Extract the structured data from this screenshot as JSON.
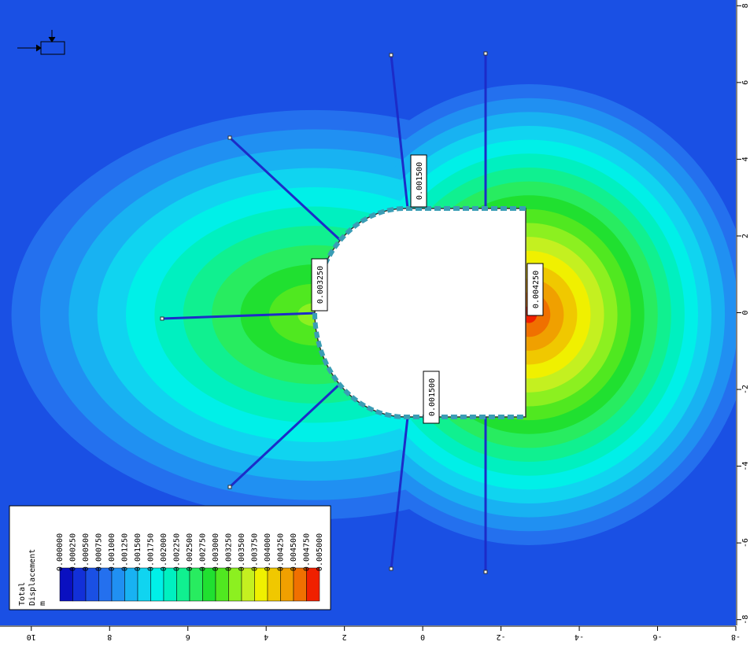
{
  "chart_data": {
    "type": "contour",
    "legend_title_lines": [
      "Total",
      "Displacement"
    ],
    "legend_unit": "m",
    "levels": [
      0,
      0.00025,
      0.0005,
      0.00075,
      0.001,
      0.00125,
      0.0015,
      0.00175,
      0.002,
      0.00225,
      0.0025,
      0.00275,
      0.003,
      0.00325,
      0.0035,
      0.00375,
      0.004,
      0.00425,
      0.0045,
      0.00475,
      0.005
    ],
    "level_labels": [
      "0.000000",
      "0.000250",
      "0.000500",
      "0.000750",
      "0.001000",
      "0.001250",
      "0.001500",
      "0.001750",
      "0.002000",
      "0.002250",
      "0.002500",
      "0.002750",
      "0.003000",
      "0.003250",
      "0.003500",
      "0.003750",
      "0.004000",
      "0.004250",
      "0.004500",
      "0.004750",
      "0.005000"
    ],
    "colors": [
      "#0a10c0",
      "#1230d8",
      "#1a50e4",
      "#2470ee",
      "#2090f2",
      "#18b2f2",
      "#10d4f0",
      "#00f0e8",
      "#00f0c0",
      "#10f090",
      "#28ec60",
      "#20e030",
      "#50e820",
      "#8cf020",
      "#c4f020",
      "#f0f000",
      "#f0c800",
      "#f0a000",
      "#f07000",
      "#f02000"
    ],
    "data_labels": {
      "values": [
        0.0015,
        0.00325,
        0.00425,
        0.0015
      ],
      "value_labels": [
        "0.001500",
        "0.003250",
        "0.004250",
        "0.001500"
      ]
    },
    "xlim": [
      10.8,
      -8
    ],
    "xticks": [
      10,
      8,
      6,
      4,
      2,
      0,
      -2,
      -4,
      -6,
      -8
    ],
    "ylim": [
      8.15,
      -8.15
    ],
    "yticks": [
      8,
      6,
      4,
      2,
      0,
      -2,
      -4,
      -6,
      -8
    ]
  }
}
